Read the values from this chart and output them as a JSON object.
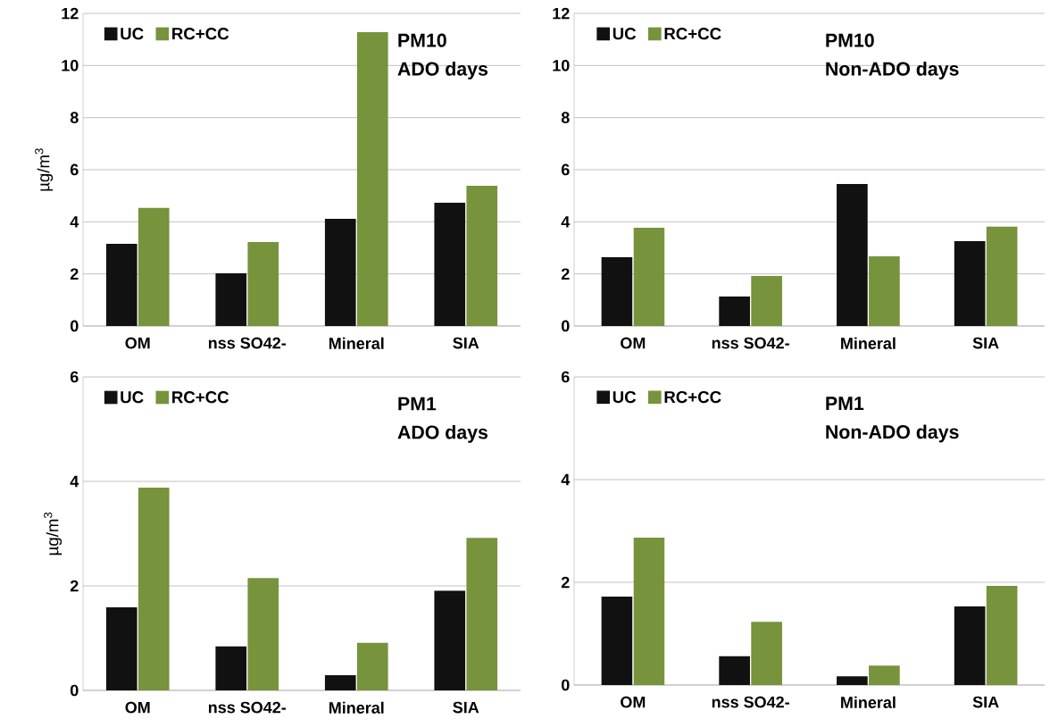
{
  "chart_data": [
    {
      "type": "bar",
      "ylabel": "µg/m$^{3}$",
      "categories": [
        "OM",
        "nss SO42-",
        "Mineral",
        "SIA"
      ],
      "series": [
        {
          "name": "UC",
          "color": "#111111",
          "values": [
            3.15,
            2.02,
            4.11,
            4.73
          ]
        },
        {
          "name": "RC+CC",
          "color": "#77933c",
          "values": [
            4.53,
            3.22,
            11.28,
            5.38
          ]
        }
      ],
      "ylim": [
        0,
        12
      ],
      "yticks": [
        0,
        2,
        4,
        6,
        8,
        10,
        12
      ],
      "grid": "y",
      "legend": "top left",
      "annotations": [
        "PM10",
        "ADO days"
      ]
    },
    {
      "type": "bar",
      "categories": [
        "OM",
        "nss SO42-",
        "Mineral",
        "SIA"
      ],
      "series": [
        {
          "name": "UC",
          "color": "#111111",
          "values": [
            2.64,
            1.13,
            5.45,
            3.26
          ]
        },
        {
          "name": "RC+CC",
          "color": "#77933c",
          "values": [
            3.77,
            1.92,
            2.67,
            3.81
          ]
        }
      ],
      "ylim": [
        0,
        12
      ],
      "yticks": [
        0,
        2,
        4,
        6,
        8,
        10,
        12
      ],
      "grid": "y",
      "legend": "top left",
      "annotations": [
        "PM10",
        "Non-ADO days"
      ]
    },
    {
      "type": "bar",
      "ylabel": "µg/m$^{3}$",
      "categories": [
        "OM",
        "nss SO42-",
        "Mineral",
        "SIA"
      ],
      "series": [
        {
          "name": "UC",
          "color": "#111111",
          "values": [
            1.59,
            0.84,
            0.29,
            1.91
          ]
        },
        {
          "name": "RC+CC",
          "color": "#77933c",
          "values": [
            3.88,
            2.15,
            0.91,
            2.92
          ]
        }
      ],
      "ylim": [
        0,
        6
      ],
      "yticks": [
        0,
        2,
        4,
        6
      ],
      "grid": "y",
      "legend": "top left",
      "annotations": [
        "PM1",
        "ADO days"
      ]
    },
    {
      "type": "bar",
      "categories": [
        "OM",
        "nss SO42-",
        "Mineral",
        "SIA"
      ],
      "series": [
        {
          "name": "UC",
          "color": "#111111",
          "values": [
            1.72,
            0.56,
            0.17,
            1.53
          ]
        },
        {
          "name": "RC+CC",
          "color": "#77933c",
          "values": [
            2.87,
            1.23,
            0.38,
            1.93
          ]
        }
      ],
      "ylim": [
        0,
        6
      ],
      "yticks": [
        0,
        2,
        4,
        6
      ],
      "grid": "y",
      "legend": "top left",
      "annotations": [
        "PM1",
        "Non-ADO days"
      ]
    }
  ]
}
